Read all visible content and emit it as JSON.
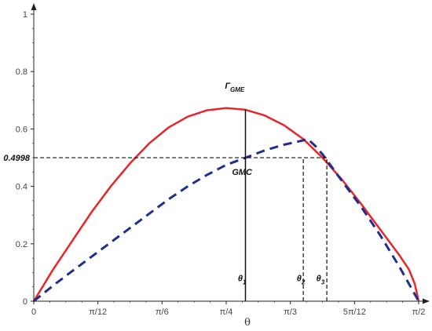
{
  "chart_data": {
    "type": "line",
    "xlabel": "θ",
    "ylabel": "",
    "xlim": [
      0,
      1.5708
    ],
    "ylim": [
      0,
      1
    ],
    "x_ticks": [
      {
        "value": 0,
        "label": "0"
      },
      {
        "value": 0.2618,
        "label": "π/12"
      },
      {
        "value": 0.5236,
        "label": "π/6"
      },
      {
        "value": 0.7854,
        "label": "π/4"
      },
      {
        "value": 1.0472,
        "label": "π/3"
      },
      {
        "value": 1.309,
        "label": "5π/12"
      },
      {
        "value": 1.5708,
        "label": "π/2"
      }
    ],
    "y_ticks": [
      {
        "value": 0,
        "label": "0"
      },
      {
        "value": 0.2,
        "label": "0.2"
      },
      {
        "value": 0.4,
        "label": "0.4"
      },
      {
        "value": 0.6,
        "label": "0.6"
      },
      {
        "value": 0.8,
        "label": "0.8"
      },
      {
        "value": 1,
        "label": "1"
      }
    ],
    "series": [
      {
        "name": "Γ_GME",
        "color": "#e8262a",
        "style": "solid",
        "x": [
          0,
          0.0785,
          0.1571,
          0.2356,
          0.3142,
          0.3927,
          0.4712,
          0.5498,
          0.6283,
          0.7069,
          0.7854,
          0.8639,
          0.9425,
          1.021,
          1.0996,
          1.1781,
          1.2566,
          1.3352,
          1.4137,
          1.4923,
          1.5315,
          1.5551,
          1.5708
        ],
        "y": [
          0,
          0.11,
          0.21,
          0.31,
          0.4,
          0.48,
          0.55,
          0.605,
          0.643,
          0.665,
          0.673,
          0.667,
          0.647,
          0.613,
          0.565,
          0.5,
          0.425,
          0.34,
          0.25,
          0.16,
          0.11,
          0.06,
          0
        ]
      },
      {
        "name": "GMC",
        "color": "#1f2e8f",
        "style": "dashed",
        "x": [
          0,
          0.0785,
          0.1571,
          0.2356,
          0.3142,
          0.3927,
          0.4712,
          0.5498,
          0.6283,
          0.7069,
          0.7854,
          0.8639,
          0.9425,
          1.021,
          1.0996,
          1.118,
          1.15,
          1.18,
          1.2566,
          1.3352,
          1.4137,
          1.4923,
          1.5708
        ],
        "y": [
          0,
          0.054,
          0.105,
          0.155,
          0.205,
          0.255,
          0.305,
          0.355,
          0.4,
          0.44,
          0.475,
          0.4998,
          0.525,
          0.545,
          0.56,
          0.565,
          0.54,
          0.51,
          0.42,
          0.33,
          0.23,
          0.12,
          0
        ]
      }
    ],
    "annotations": [
      {
        "text": "Γ",
        "sub": "GME",
        "x": 0.82,
        "y": 0.74
      },
      {
        "text": "GMC",
        "x": 0.85,
        "y": 0.44
      },
      {
        "text": "0.4998",
        "x": 0.0,
        "y": 0.4998
      },
      {
        "text": "θ",
        "sub": "1",
        "x": 0.85,
        "y": 0.07
      },
      {
        "text": "θ",
        "sub": "2",
        "x": 1.09,
        "y": 0.07
      },
      {
        "text": "θ",
        "sub": "3",
        "x": 1.17,
        "y": 0.07
      }
    ],
    "reference_lines": [
      {
        "name": "theta1",
        "style": "solid",
        "x": 0.8639,
        "y_from": 0,
        "y_to": 0.667
      },
      {
        "name": "hline",
        "style": "dashed",
        "x_from": 0,
        "x_to": 1.196,
        "y": 0.4998
      },
      {
        "name": "theta2",
        "style": "dashed",
        "x": 1.1,
        "y_from": 0,
        "y_to": 0.4998
      },
      {
        "name": "theta3",
        "style": "dashed",
        "x": 1.196,
        "y_from": 0,
        "y_to": 0.4998
      }
    ],
    "grid": false,
    "legend": "none"
  }
}
